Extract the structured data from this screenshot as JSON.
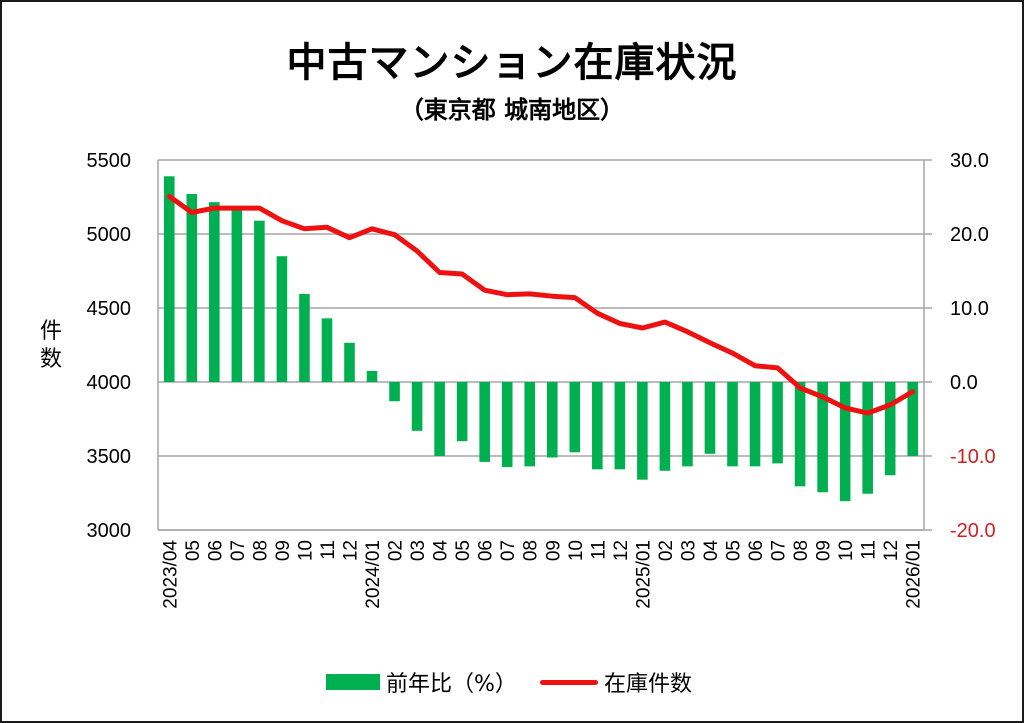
{
  "chart_data": {
    "type": "bar+line",
    "title": "中古マンション在庫状況",
    "subtitle": "（東京都 城南地区）",
    "ylabel_left": "件数",
    "categories": [
      "2023/04",
      "05",
      "06",
      "07",
      "08",
      "09",
      "10",
      "11",
      "12",
      "2024/01",
      "02",
      "03",
      "04",
      "05",
      "06",
      "07",
      "08",
      "09",
      "10",
      "11",
      "12",
      "2025/01",
      "02",
      "03",
      "04",
      "05",
      "06",
      "07",
      "08",
      "09",
      "10",
      "11",
      "12",
      "2026/01"
    ],
    "series": [
      {
        "name": "前年比（%）",
        "type": "bar",
        "axis": "right",
        "color": "#00b050",
        "values": [
          27.8,
          25.4,
          24.3,
          23.2,
          21.8,
          17.0,
          11.9,
          8.6,
          5.3,
          1.5,
          -2.6,
          -6.6,
          -10.0,
          -8.0,
          -10.8,
          -11.5,
          -11.4,
          -10.2,
          -9.5,
          -11.8,
          -11.8,
          -13.2,
          -12.0,
          -11.4,
          -9.7,
          -11.4,
          -11.4,
          -11.0,
          -14.1,
          -14.9,
          -16.1,
          -15.1,
          -12.6,
          -10.0
        ]
      },
      {
        "name": "在庫件数",
        "type": "line",
        "axis": "left",
        "color": "#ee1111",
        "values": [
          5255,
          5145,
          5175,
          5175,
          5175,
          5090,
          5035,
          5045,
          4975,
          5035,
          4995,
          4885,
          4740,
          4730,
          4620,
          4590,
          4595,
          4580,
          4570,
          4465,
          4395,
          4365,
          4405,
          4340,
          4265,
          4195,
          4110,
          4095,
          3960,
          3900,
          3825,
          3790,
          3845,
          3935
        ]
      }
    ],
    "y_left": {
      "ylim": [
        3000,
        5500
      ],
      "ticks": [
        "3000",
        "3500",
        "4000",
        "4500",
        "5000",
        "5500"
      ],
      "tick_values": [
        3000,
        3500,
        4000,
        4500,
        5000,
        5500
      ]
    },
    "y_right": {
      "ylim": [
        -20,
        30
      ],
      "ticks": [
        "-20.0",
        "-10.0",
        "0.0",
        "10.0",
        "20.0",
        "30.0"
      ],
      "tick_values": [
        -20,
        -10,
        0,
        10,
        20,
        30
      ],
      "negative_color": "#cc2222"
    },
    "grid": true,
    "legend": "bottom",
    "colors": {
      "grid": "#a6a6a6",
      "axis": "#a6a6a6",
      "text": "#000000"
    }
  }
}
